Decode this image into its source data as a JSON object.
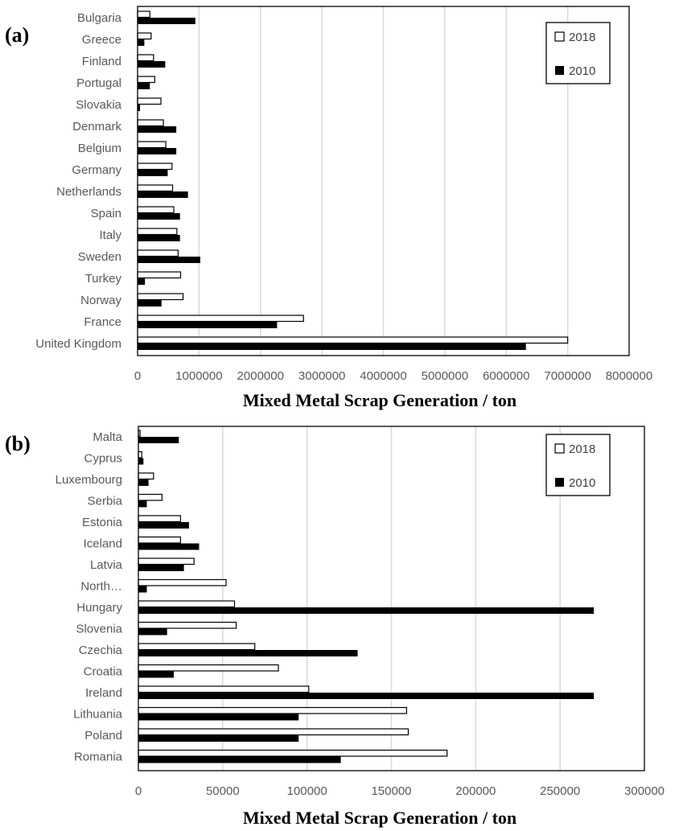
{
  "colors": {
    "s2018_fill": "#ffffff",
    "s2010_fill": "#000000",
    "grid": "#d9d9d9",
    "frame": "#000000"
  },
  "chart_data": [
    {
      "panel": "(a)",
      "type": "bar",
      "orientation": "horizontal",
      "xlabel": "Mixed Metal Scrap Generation / ton",
      "xlim": [
        0,
        8000000
      ],
      "x_ticks": [
        "0",
        "1000000",
        "2000000",
        "3000000",
        "4000000",
        "5000000",
        "6000000",
        "7000000",
        "8000000"
      ],
      "categories": [
        "Bulgaria",
        "Greece",
        "Finland",
        "Portugal",
        "Slovakia",
        "Denmark",
        "Belgium",
        "Germany",
        "Netherlands",
        "Spain",
        "Italy",
        "Sweden",
        "Turkey",
        "Norway",
        "France",
        "United Kingdom"
      ],
      "series": [
        {
          "name": "2018",
          "values": [
            200000,
            220000,
            260000,
            280000,
            380000,
            420000,
            460000,
            560000,
            570000,
            590000,
            640000,
            660000,
            700000,
            740000,
            2700000,
            7000000
          ]
        },
        {
          "name": "2010",
          "values": [
            940000,
            110000,
            450000,
            200000,
            40000,
            630000,
            630000,
            490000,
            820000,
            690000,
            690000,
            1020000,
            120000,
            390000,
            2270000,
            6320000
          ]
        }
      ],
      "legend": [
        "2018",
        "2010"
      ],
      "legend_position": "top-right",
      "grid": true
    },
    {
      "panel": "(b)",
      "type": "bar",
      "orientation": "horizontal",
      "xlabel": "Mixed Metal Scrap Generation / ton",
      "xlim": [
        0,
        300000
      ],
      "x_ticks": [
        "0",
        "50000",
        "100000",
        "150000",
        "200000",
        "250000",
        "300000"
      ],
      "categories": [
        "Malta",
        "Cyprus",
        "Luxembourg",
        "Serbia",
        "Estonia",
        "Iceland",
        "Latvia",
        "North…",
        "Hungary",
        "Slovenia",
        "Czechia",
        "Croatia",
        "Ireland",
        "Lithuania",
        "Poland",
        "Romania"
      ],
      "series": [
        {
          "name": "2018",
          "values": [
            1000,
            2000,
            9000,
            14000,
            25000,
            25000,
            33000,
            52000,
            57000,
            58000,
            69000,
            83000,
            101000,
            159000,
            160000,
            183000
          ]
        },
        {
          "name": "2010",
          "values": [
            24000,
            3000,
            6000,
            5000,
            30000,
            36000,
            27000,
            5000,
            270000,
            17000,
            130000,
            21000,
            270000,
            95000,
            95000,
            120000
          ]
        }
      ],
      "legend": [
        "2018",
        "2010"
      ],
      "legend_position": "top-right",
      "grid": true
    }
  ]
}
